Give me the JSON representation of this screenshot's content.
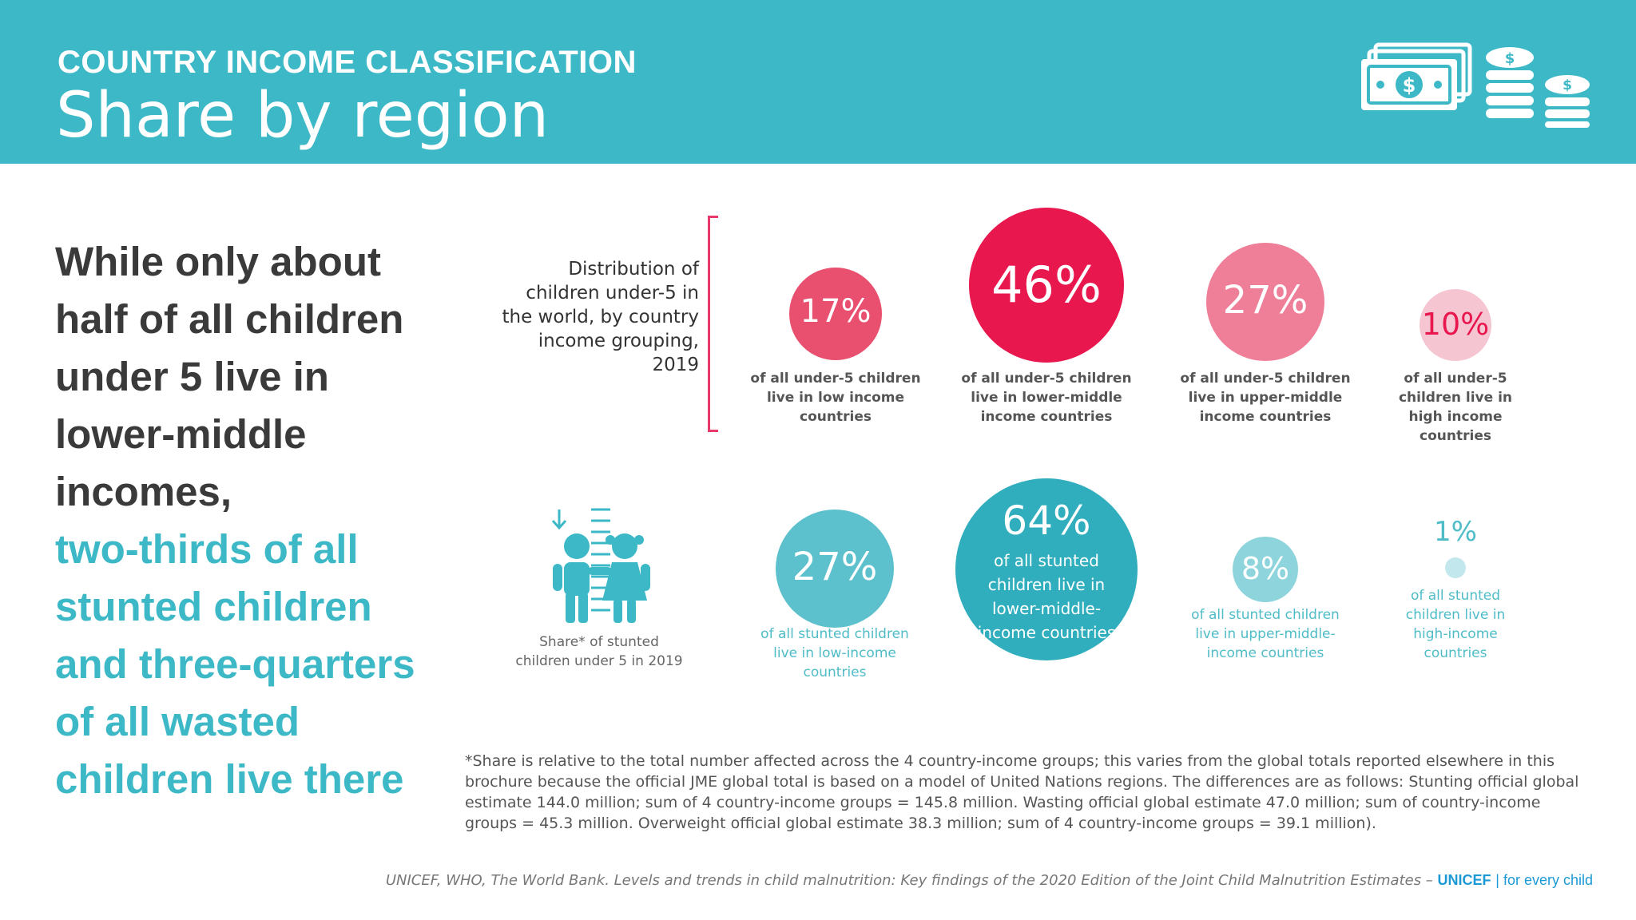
{
  "header": {
    "kicker": "COUNTRY INCOME CLASSIFICATION",
    "title": "Share by region",
    "icon": "money-coins-icon"
  },
  "lead": {
    "dark": [
      "While only about",
      "half of all children",
      "under 5 live in",
      "lower-middle",
      "incomes,"
    ],
    "teal": [
      "two-thirds of all",
      "stunted children",
      "and three-quarters",
      "of all wasted",
      "children live there"
    ]
  },
  "distribution": {
    "label": "Distribution of children under-5 in the world, by country income grouping, 2019",
    "bubbles": [
      {
        "value": 17,
        "pct": "17%",
        "caption": "of all under-5 children live in low income countries",
        "color": "#e94f6e"
      },
      {
        "value": 46,
        "pct": "46%",
        "caption": "of all under-5 children live in lower-middle income countries",
        "color": "#e8174e"
      },
      {
        "value": 27,
        "pct": "27%",
        "caption": "of all under-5 children live in upper-middle income countries",
        "color": "#ef7f98"
      },
      {
        "value": 10,
        "pct": "10%",
        "caption": "of all under-5 children live in high income countries",
        "color": "#f6c5d2"
      }
    ]
  },
  "stunting": {
    "label": "Share* of stunted children under 5 in 2019",
    "icon": "children-height-icon",
    "bubbles": [
      {
        "value": 27,
        "pct": "27%",
        "caption": "of all stunted children live in low-income countries",
        "color": "#5cc1cc"
      },
      {
        "value": 64,
        "pct": "64%",
        "caption": "of all stunted children live in lower-middle-income countries",
        "color": "#30aebd"
      },
      {
        "value": 8,
        "pct": "8%",
        "caption": "of all stunted children live in upper-middle-income countries",
        "color": "#8dd4dc"
      },
      {
        "value": 1,
        "pct": "1%",
        "caption": "of all stunted children live in high-income countries",
        "color": "#c2e7ec"
      }
    ]
  },
  "footnote": "*Share is relative to the total number affected across the 4 country-income groups; this varies from the global totals reported elsewhere in this brochure because the official JME global total is based on a model of United Nations regions. The differences are as follows: Stunting official global estimate 144.0 million; sum of 4 country-income groups = 145.8 million. Wasting official global estimate 47.0 million; sum of country-income groups = 45.3 million. Overweight official global estimate 38.3 million; sum of 4 country-income groups = 39.1 million).",
  "source": {
    "text": "UNICEF, WHO, The World Bank. Levels and trends in child malnutrition: Key findings of the 2020 Edition of the Joint Child Malnutrition Estimates – ",
    "org": "UNICEF",
    "tagline": "| for every child"
  }
}
